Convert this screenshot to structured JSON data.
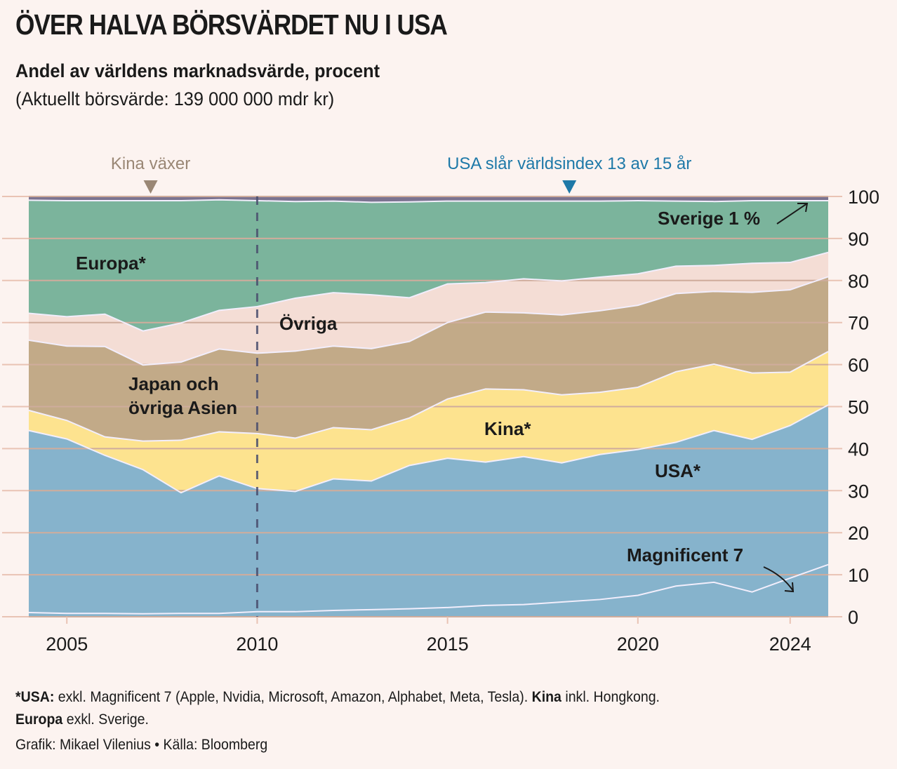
{
  "header": {
    "title": "ÖVER HALVA BÖRSVÄRDET NU I USA",
    "subtitle": "Andel av världens marknadsvärde, procent",
    "note": "(Aktuellt börsvärde: 139 000 000 mdr kr)"
  },
  "footer": {
    "line1": [
      {
        "text": "*USA:",
        "bold": true
      },
      {
        "text": " exkl. Magnificent 7 (Apple, Nvidia, Microsoft, Amazon, Alphabet, Meta, Tesla). ",
        "bold": false
      },
      {
        "text": "Kina",
        "bold": true
      },
      {
        "text": " inkl. Hongkong.",
        "bold": false
      }
    ],
    "line2": [
      {
        "text": "Europa",
        "bold": true
      },
      {
        "text": " exkl. Sverige.",
        "bold": false
      }
    ],
    "credit": "Grafik: Mikael Vilenius • Källa: Bloomberg"
  },
  "chart_data": {
    "type": "area",
    "stacked": true,
    "title": "ÖVER HALVA BÖRSVÄRDET NU I USA",
    "ylabel": "Andel av världens marknadsvärde, procent",
    "xlabel": "",
    "x": [
      2004,
      2005,
      2006,
      2007,
      2008,
      2009,
      2010,
      2011,
      2012,
      2013,
      2014,
      2015,
      2016,
      2017,
      2018,
      2019,
      2020,
      2021,
      2022,
      2023,
      2024,
      2025
    ],
    "xlim": [
      2004,
      2025
    ],
    "xticks": [
      2005,
      2010,
      2015,
      2020,
      2024
    ],
    "ylim": [
      0,
      100
    ],
    "yticks": [
      0,
      10,
      20,
      30,
      40,
      50,
      60,
      70,
      80,
      90,
      100
    ],
    "yaxis_side": "right",
    "grid": true,
    "series_note": "values are cumulative upper boundaries of each stacked band (percent)",
    "series": [
      {
        "name": "Magnificent 7",
        "label": "Magnificent 7",
        "color": "#86b3cc",
        "line": "#f2eefc",
        "top": [
          1.0,
          0.8,
          0.8,
          0.7,
          0.8,
          0.8,
          1.2,
          1.2,
          1.5,
          1.7,
          1.9,
          2.2,
          2.7,
          2.9,
          3.5,
          4.1,
          5.1,
          7.3,
          8.2,
          5.9,
          9.2,
          12.4
        ]
      },
      {
        "name": "USA",
        "label": "USA*",
        "color": "#86b3cc",
        "line": "#f2eefc",
        "top": [
          44.3,
          42.3,
          38.4,
          35.0,
          29.5,
          33.5,
          30.5,
          29.8,
          32.8,
          32.3,
          36.0,
          37.7,
          36.8,
          38.1,
          36.6,
          38.6,
          39.8,
          41.5,
          44.3,
          42.2,
          45.5,
          50.4
        ]
      },
      {
        "name": "Kina",
        "label": "Kina*",
        "color": "#fde38f",
        "line": "#f2eefc",
        "top": [
          49.1,
          46.7,
          42.8,
          41.8,
          42.0,
          44.0,
          43.6,
          42.5,
          45.0,
          44.5,
          47.3,
          51.8,
          54.2,
          54.0,
          52.8,
          53.4,
          54.6,
          58.3,
          60.1,
          58.0,
          58.2,
          63.1
        ]
      },
      {
        "name": "Japan och övriga Asien",
        "label": "Japan och|övriga Asien",
        "color": "#c2aa88",
        "line": "#f2eefc",
        "top": [
          65.8,
          64.4,
          64.3,
          59.9,
          60.6,
          63.7,
          62.7,
          63.2,
          64.4,
          63.8,
          65.5,
          70.0,
          72.5,
          72.3,
          71.8,
          72.8,
          74.1,
          76.9,
          77.4,
          77.2,
          77.8,
          80.9
        ]
      },
      {
        "name": "Övriga",
        "label": "Övriga",
        "color": "#f4ddd5",
        "line": "#f2eefc",
        "top": [
          72.2,
          71.4,
          72.0,
          68.0,
          69.9,
          72.9,
          73.8,
          75.8,
          77.1,
          76.6,
          75.9,
          79.2,
          79.5,
          80.4,
          79.9,
          80.8,
          81.6,
          83.4,
          83.6,
          84.1,
          84.3,
          86.7
        ]
      },
      {
        "name": "Europa",
        "label": "Europa*",
        "color": "#7bb49c",
        "line": "#f2eefc",
        "top": [
          99.1,
          99.0,
          99.0,
          99.0,
          99.0,
          99.2,
          99.0,
          98.8,
          98.9,
          98.6,
          98.7,
          98.9,
          98.9,
          98.9,
          98.9,
          98.9,
          99.0,
          98.9,
          98.8,
          99.0,
          99.0,
          99.0
        ]
      },
      {
        "name": "Sverige",
        "label": "Sverige 1 %",
        "color": "#7b7390",
        "line": "#f2eefc",
        "top": [
          100,
          100,
          100,
          100,
          100,
          100,
          100,
          100,
          100,
          100,
          100,
          100,
          100,
          100,
          100,
          100,
          100,
          100,
          100,
          100,
          100,
          100
        ]
      }
    ],
    "reference_line": {
      "x": 2010,
      "style": "dashed",
      "color": "#4a4e6e"
    },
    "annotations": [
      {
        "text": "Kina växer",
        "x": 2007.2,
        "color": "#9a8775",
        "marker": "triangle-down"
      },
      {
        "text": "USA slår världsindex 13 av 15 år",
        "x": 2018.2,
        "color": "#1e79a8",
        "marker": "triangle-down"
      }
    ],
    "colors": {
      "background": "#fcf3f0",
      "grid": "#e9c3b4",
      "text": "#1a1a1a"
    }
  }
}
